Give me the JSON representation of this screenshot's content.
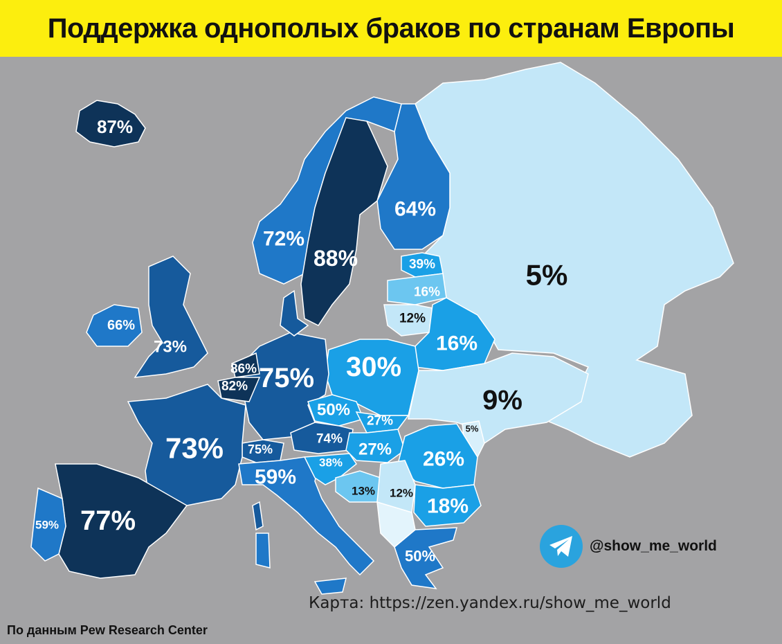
{
  "title": "Поддержка однополых браков по странам Европы",
  "legend_colors": {
    "very_high": "#0e3358",
    "high": "#165a9c",
    "mid_high": "#1f78c8",
    "mid": "#1aa0e6",
    "low": "#6cc6f0",
    "very_low": "#c3e7f8"
  },
  "countries": [
    {
      "name": "Iceland",
      "label": "87%",
      "value": 87
    },
    {
      "name": "Norway",
      "label": "72%",
      "value": 72
    },
    {
      "name": "Sweden",
      "label": "88%",
      "value": 88
    },
    {
      "name": "Finland",
      "label": "64%",
      "value": 64
    },
    {
      "name": "Russia",
      "label": "5%",
      "value": 5
    },
    {
      "name": "Estonia",
      "label": "39%",
      "value": 39
    },
    {
      "name": "Latvia",
      "label": "16%",
      "value": 16
    },
    {
      "name": "Lithuania",
      "label": "12%",
      "value": 12
    },
    {
      "name": "Belarus",
      "label": "16%",
      "value": 16
    },
    {
      "name": "Ireland",
      "label": "66%",
      "value": 66
    },
    {
      "name": "United Kingdom",
      "label": "73%",
      "value": 73
    },
    {
      "name": "Netherlands",
      "label": "86%",
      "value": 86
    },
    {
      "name": "Belgium",
      "label": "82%",
      "value": 82
    },
    {
      "name": "Germany",
      "label": "75%",
      "value": 75
    },
    {
      "name": "Poland",
      "label": "30%",
      "value": 30
    },
    {
      "name": "Ukraine",
      "label": "9%",
      "value": 9
    },
    {
      "name": "Moldova",
      "label": "5%",
      "value": 5
    },
    {
      "name": "Czechia",
      "label": "50%",
      "value": 50
    },
    {
      "name": "Slovakia",
      "label": "27%",
      "value": 27
    },
    {
      "name": "Austria",
      "label": "74%",
      "value": 74
    },
    {
      "name": "Hungary",
      "label": "27%",
      "value": 27
    },
    {
      "name": "Romania",
      "label": "26%",
      "value": 26
    },
    {
      "name": "France",
      "label": "73%",
      "value": 73
    },
    {
      "name": "Switzerland",
      "label": "75%",
      "value": 75
    },
    {
      "name": "Italy",
      "label": "59%",
      "value": 59
    },
    {
      "name": "Croatia",
      "label": "38%",
      "value": 38
    },
    {
      "name": "Bosnia and Herzegovina",
      "label": "13%",
      "value": 13
    },
    {
      "name": "Serbia",
      "label": "12%",
      "value": 12
    },
    {
      "name": "Bulgaria",
      "label": "18%",
      "value": 18
    },
    {
      "name": "Greece",
      "label": "50%",
      "value": 50
    },
    {
      "name": "Portugal",
      "label": "59%",
      "value": 59
    },
    {
      "name": "Spain",
      "label": "77%",
      "value": 77
    }
  ],
  "brand": {
    "icon": "telegram-icon",
    "handle": "@show_me_world"
  },
  "map_url": "Карта: https://zen.yandex.ru/show_me_world",
  "source": "По данным Pew Research Center"
}
